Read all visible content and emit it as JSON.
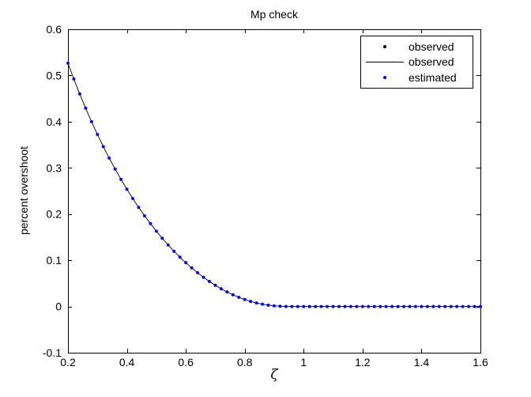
{
  "chart": {
    "title": "Mp check",
    "xlabel": "ζ",
    "ylabel": "percent overshoot",
    "legend": [
      {
        "label": "observed",
        "marker": "dot",
        "color": "#000000"
      },
      {
        "label": "observed",
        "marker": "line",
        "color": "#000000"
      },
      {
        "label": "estimated",
        "marker": "dot",
        "color": "#0000ff"
      }
    ]
  },
  "chart_data": {
    "type": "line",
    "title": "Mp check",
    "xlabel": "ζ",
    "ylabel": "percent overshoot",
    "xlim": [
      0.2,
      1.6
    ],
    "ylim": [
      -0.1,
      0.6
    ],
    "grid": false,
    "legend_position": "top-right",
    "x_ticks": [
      0.2,
      0.4,
      0.6,
      0.8,
      1.0,
      1.2,
      1.4,
      1.6
    ],
    "x_tick_labels": [
      "0.2",
      "0.4",
      "0.6",
      "0.8",
      "1",
      "1.2",
      "1.4",
      "1.6"
    ],
    "y_ticks": [
      -0.1,
      0,
      0.1,
      0.2,
      0.3,
      0.4,
      0.5,
      0.6
    ],
    "y_tick_labels": [
      "-0.1",
      "0",
      "0.1",
      "0.2",
      "0.3",
      "0.4",
      "0.5",
      "0.6"
    ],
    "x": [
      0.2,
      0.22,
      0.24,
      0.26,
      0.28,
      0.3,
      0.32,
      0.34,
      0.36,
      0.38,
      0.4,
      0.42,
      0.44,
      0.46,
      0.48,
      0.5,
      0.52,
      0.54,
      0.56,
      0.58,
      0.6,
      0.62,
      0.64,
      0.66,
      0.68,
      0.7,
      0.72,
      0.74,
      0.76,
      0.78,
      0.8,
      0.82,
      0.84,
      0.86,
      0.88,
      0.9,
      0.92,
      0.94,
      0.96,
      0.98,
      1.0,
      1.02,
      1.04,
      1.06,
      1.08,
      1.1,
      1.12,
      1.14,
      1.16,
      1.18,
      1.2,
      1.22,
      1.24,
      1.26,
      1.28,
      1.3,
      1.32,
      1.34,
      1.36,
      1.38,
      1.4,
      1.42,
      1.44,
      1.46,
      1.48,
      1.5,
      1.52,
      1.54,
      1.56,
      1.58,
      1.6
    ],
    "y": [
      0.5266,
      0.4924,
      0.46,
      0.4292,
      0.4,
      0.3723,
      0.3461,
      0.3212,
      0.2976,
      0.2751,
      0.2538,
      0.2337,
      0.2145,
      0.1964,
      0.1793,
      0.163,
      0.1477,
      0.1332,
      0.1196,
      0.1068,
      0.0948,
      0.0835,
      0.073,
      0.0633,
      0.0543,
      0.046,
      0.0384,
      0.0315,
      0.0254,
      0.0199,
      0.0152,
      0.0111,
      0.0077,
      0.005,
      0.003,
      0.0015,
      0.0006,
      0.0002,
      0,
      0,
      0,
      0,
      0,
      0,
      0,
      0,
      0,
      0,
      0,
      0,
      0,
      0,
      0,
      0,
      0,
      0,
      0,
      0,
      0,
      0,
      0,
      0,
      0,
      0,
      0,
      0,
      0,
      0,
      0,
      0,
      0
    ],
    "series": [
      {
        "name": "observed",
        "style": "black point markers",
        "color": "#000000",
        "uses": "shared x/y"
      },
      {
        "name": "observed",
        "style": "black solid line",
        "color": "#000000",
        "uses": "shared x/y"
      },
      {
        "name": "estimated",
        "style": "blue point markers",
        "color": "#0000ff",
        "uses": "shared x/y"
      }
    ]
  }
}
